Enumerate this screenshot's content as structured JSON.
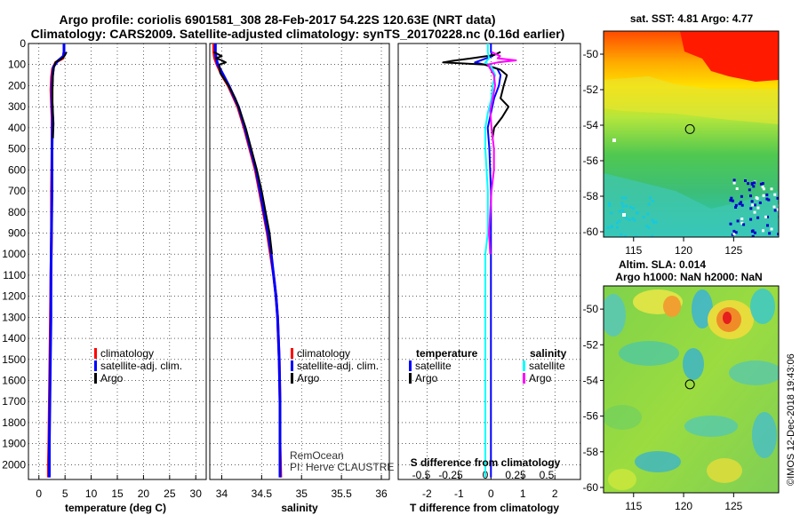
{
  "title": {
    "line1": "Argo profile: coriolis 6901581_308 28-Feb-2017 54.22S 120.63E (NRT data)",
    "line2": "Climatology: CARS2009. Satellite-adjusted climatology: synTS_20170228.nc (0.16d earlier)"
  },
  "credit": {
    "line1": "RemOcean",
    "line2": "PI: Herve CLAUSTRE"
  },
  "watermark": "©IMOS 12-Dec-2018 19:43:06",
  "colors": {
    "climatology": "#ff0000",
    "satellite_adj": "#0000ff",
    "argo": "#000000",
    "satellite": "#00ffff",
    "argo_salinity_diff": "#ff00ff",
    "grid": "#000000"
  },
  "chart_data": [
    {
      "type": "line",
      "name": "temperature-panel",
      "xlabel": "temperature (deg C)",
      "ylabel": "",
      "xlim": [
        -2,
        32
      ],
      "ylim": [
        2070,
        0
      ],
      "xticks": [
        0,
        5,
        10,
        15,
        20,
        25,
        30
      ],
      "yticks": [
        0,
        100,
        200,
        300,
        400,
        500,
        600,
        700,
        800,
        900,
        1000,
        1100,
        1200,
        1300,
        1400,
        1500,
        1600,
        1700,
        1800,
        1900,
        2000
      ],
      "legend": [
        "climatology",
        "satellite-adj. clim.",
        "Argo"
      ],
      "legend_position": "lower-right",
      "series": [
        {
          "name": "climatology",
          "points": [
            [
              4.8,
              0
            ],
            [
              4.8,
              40
            ],
            [
              4.6,
              70
            ],
            [
              3.2,
              90
            ],
            [
              2.6,
              120
            ],
            [
              2.4,
              160
            ],
            [
              2.3,
              220
            ],
            [
              2.4,
              290
            ],
            [
              2.5,
              350
            ],
            [
              2.5,
              500
            ],
            [
              2.4,
              700
            ],
            [
              2.4,
              900
            ],
            [
              2.3,
              1100
            ],
            [
              2.2,
              1300
            ],
            [
              2.1,
              1500
            ],
            [
              2.0,
              1700
            ],
            [
              1.9,
              1900
            ],
            [
              1.8,
              2000
            ],
            [
              1.8,
              2060
            ]
          ]
        },
        {
          "name": "satellite-adj. clim.",
          "points": [
            [
              4.8,
              0
            ],
            [
              4.8,
              40
            ],
            [
              4.7,
              60
            ],
            [
              3.5,
              85
            ],
            [
              2.8,
              110
            ],
            [
              2.6,
              150
            ],
            [
              2.5,
              200
            ],
            [
              2.5,
              280
            ],
            [
              2.6,
              350
            ],
            [
              2.5,
              500
            ],
            [
              2.5,
              700
            ],
            [
              2.4,
              900
            ],
            [
              2.3,
              1100
            ],
            [
              2.3,
              1300
            ],
            [
              2.2,
              1500
            ],
            [
              2.1,
              1700
            ],
            [
              2.0,
              1900
            ],
            [
              2.0,
              2060
            ]
          ]
        },
        {
          "name": "Argo",
          "points": [
            [
              5.3,
              40
            ],
            [
              5.0,
              55
            ],
            [
              4.7,
              65
            ],
            [
              4.2,
              75
            ],
            [
              3.2,
              88
            ],
            [
              2.9,
              110
            ],
            [
              2.7,
              150
            ],
            [
              2.6,
              220
            ],
            [
              2.6,
              280
            ],
            [
              2.7,
              330
            ],
            [
              2.8,
              380
            ],
            [
              2.7,
              450
            ]
          ]
        }
      ]
    },
    {
      "type": "line",
      "name": "salinity-panel",
      "xlabel": "salinity",
      "ylabel": "",
      "xlim": [
        33.85,
        36.1
      ],
      "ylim": [
        2070,
        0
      ],
      "xticks": [
        34,
        34.5,
        35,
        35.5,
        36
      ],
      "yticks": [
        0,
        100,
        200,
        300,
        400,
        500,
        600,
        700,
        800,
        900,
        1000,
        1100,
        1200,
        1300,
        1400,
        1500,
        1600,
        1700,
        1800,
        1900,
        2000
      ],
      "legend": [
        "climatology",
        "satellite-adj. clim.",
        "Argo"
      ],
      "legend_position": "lower-right",
      "series": [
        {
          "name": "climatology",
          "points": [
            [
              33.9,
              0
            ],
            [
              33.9,
              40
            ],
            [
              33.91,
              70
            ],
            [
              33.94,
              100
            ],
            [
              34.0,
              150
            ],
            [
              34.08,
              200
            ],
            [
              34.14,
              250
            ],
            [
              34.2,
              300
            ],
            [
              34.28,
              400
            ],
            [
              34.35,
              500
            ],
            [
              34.42,
              600
            ],
            [
              34.47,
              700
            ],
            [
              34.52,
              800
            ],
            [
              34.57,
              900
            ],
            [
              34.61,
              1000
            ],
            [
              34.65,
              1100
            ],
            [
              34.68,
              1200
            ],
            [
              34.7,
              1300
            ],
            [
              34.71,
              1400
            ],
            [
              34.72,
              1500
            ],
            [
              34.73,
              1700
            ],
            [
              34.73,
              1900
            ],
            [
              34.74,
              2060
            ]
          ]
        },
        {
          "name": "satellite-adj. clim.",
          "points": [
            [
              33.92,
              0
            ],
            [
              33.92,
              40
            ],
            [
              33.93,
              70
            ],
            [
              33.95,
              100
            ],
            [
              34.02,
              150
            ],
            [
              34.09,
              200
            ],
            [
              34.15,
              250
            ],
            [
              34.21,
              300
            ],
            [
              34.29,
              400
            ],
            [
              34.36,
              500
            ],
            [
              34.43,
              600
            ],
            [
              34.48,
              700
            ],
            [
              34.53,
              800
            ],
            [
              34.58,
              900
            ],
            [
              34.62,
              1000
            ],
            [
              34.65,
              1100
            ],
            [
              34.68,
              1200
            ],
            [
              34.7,
              1300
            ],
            [
              34.71,
              1400
            ],
            [
              34.72,
              1500
            ],
            [
              34.73,
              1700
            ],
            [
              34.73,
              1900
            ],
            [
              34.73,
              2060
            ]
          ]
        },
        {
          "name": "Argo",
          "points": [
            [
              33.9,
              40
            ],
            [
              34.0,
              60
            ],
            [
              33.93,
              70
            ],
            [
              34.0,
              80
            ],
            [
              34.05,
              90
            ],
            [
              33.97,
              100
            ],
            [
              33.98,
              140
            ],
            [
              34.05,
              180
            ],
            [
              34.1,
              210
            ],
            [
              34.17,
              260
            ],
            [
              34.22,
              310
            ],
            [
              34.3,
              400
            ],
            [
              34.37,
              500
            ],
            [
              34.44,
              600
            ],
            [
              34.5,
              700
            ],
            [
              34.55,
              800
            ],
            [
              34.6,
              900
            ],
            [
              34.63,
              1000
            ]
          ]
        }
      ]
    },
    {
      "type": "line",
      "name": "difference-panel",
      "xlabel": "T difference from climatology",
      "xlabel_top": "S difference from climatology",
      "ylabel": "",
      "xlim": [
        -2.9,
        2.8
      ],
      "ylim": [
        2070,
        0
      ],
      "xticks": [
        -2,
        -1,
        0,
        1,
        2
      ],
      "xticks_salinity": [
        -0.5,
        -0.25,
        0,
        0.25,
        0.5
      ],
      "yticks": [
        0,
        100,
        200,
        300,
        400,
        500,
        600,
        700,
        800,
        900,
        1000,
        1100,
        1200,
        1300,
        1400,
        1500,
        1600,
        1700,
        1800,
        1900,
        2000
      ],
      "legend": {
        "temperature_title": "temperature",
        "salinity_title": "salinity",
        "temperature": [
          "satellite",
          "Argo"
        ],
        "salinity": [
          "satellite",
          "Argo"
        ]
      },
      "legend_position": "lower-center",
      "series": [
        {
          "name": "T satellite",
          "points": [
            [
              0,
              0
            ],
            [
              0,
              40
            ],
            [
              0.05,
              60
            ],
            [
              -0.5,
              90
            ],
            [
              -0.2,
              100
            ],
            [
              0.2,
              120
            ],
            [
              0.3,
              150
            ],
            [
              0.25,
              200
            ],
            [
              0.1,
              260
            ],
            [
              0,
              330
            ],
            [
              -0.1,
              400
            ],
            [
              -0.05,
              500
            ],
            [
              0,
              700
            ],
            [
              0,
              900
            ],
            [
              0,
              1000
            ],
            [
              0,
              1200
            ],
            [
              0,
              1500
            ],
            [
              0,
              1800
            ],
            [
              0,
              2060
            ]
          ]
        },
        {
          "name": "T Argo",
          "points": [
            [
              0.3,
              40
            ],
            [
              0.1,
              55
            ],
            [
              -0.6,
              70
            ],
            [
              -1.2,
              82
            ],
            [
              -1.5,
              90
            ],
            [
              -0.2,
              100
            ],
            [
              0.3,
              125
            ],
            [
              0.5,
              150
            ],
            [
              0.4,
              200
            ],
            [
              0.3,
              260
            ],
            [
              0.55,
              300
            ],
            [
              0.35,
              350
            ],
            [
              0.1,
              400
            ],
            [
              0.05,
              450
            ]
          ]
        },
        {
          "name": "S satellite",
          "points": [
            [
              0.02,
              0
            ],
            [
              0.02,
              40
            ],
            [
              0.03,
              70
            ],
            [
              0,
              90
            ],
            [
              0.05,
              110
            ],
            [
              0.08,
              150
            ],
            [
              0.06,
              200
            ],
            [
              0.05,
              260
            ],
            [
              0.02,
              330
            ],
            [
              0,
              400
            ],
            [
              0,
              500
            ],
            [
              0.02,
              700
            ],
            [
              0.02,
              900
            ],
            [
              0,
              1000
            ],
            [
              0,
              1200
            ],
            [
              0,
              1500
            ],
            [
              0,
              1800
            ],
            [
              0,
              2060
            ]
          ]
        },
        {
          "name": "S Argo",
          "points": [
            [
              0.05,
              40
            ],
            [
              0.12,
              60
            ],
            [
              0.1,
              70
            ],
            [
              0.25,
              80
            ],
            [
              0.1,
              90
            ],
            [
              0.02,
              100
            ],
            [
              0.07,
              150
            ],
            [
              0.08,
              200
            ],
            [
              0.06,
              260
            ],
            [
              0.04,
              320
            ],
            [
              0.05,
              400
            ],
            [
              0.07,
              500
            ],
            [
              0.07,
              600
            ],
            [
              0.05,
              700
            ],
            [
              0.04,
              800
            ],
            [
              0.03,
              900
            ],
            [
              0.04,
              1000
            ]
          ]
        }
      ]
    },
    {
      "type": "heatmap",
      "name": "sst-map",
      "title": "sat. SST: 4.81 Argo: 4.77",
      "xticks": [
        115,
        120,
        125
      ],
      "yticks": [
        -50,
        -52,
        -54,
        -56,
        -58,
        -60
      ],
      "xlim": [
        112,
        129.5
      ],
      "ylim": [
        -60.3,
        -48.7
      ],
      "marker": {
        "lon": 120.63,
        "lat": -54.22
      }
    },
    {
      "type": "heatmap",
      "name": "sla-map",
      "title": "Altim. SLA: 0.014",
      "subtitle": "Argo h1000: NaN h2000: NaN",
      "xticks": [
        115,
        120,
        125
      ],
      "yticks": [
        -50,
        -52,
        -54,
        -56,
        -58,
        -60
      ],
      "xlim": [
        112,
        129.5
      ],
      "ylim": [
        -60.3,
        -48.7
      ],
      "marker": {
        "lon": 120.63,
        "lat": -54.22
      }
    }
  ]
}
